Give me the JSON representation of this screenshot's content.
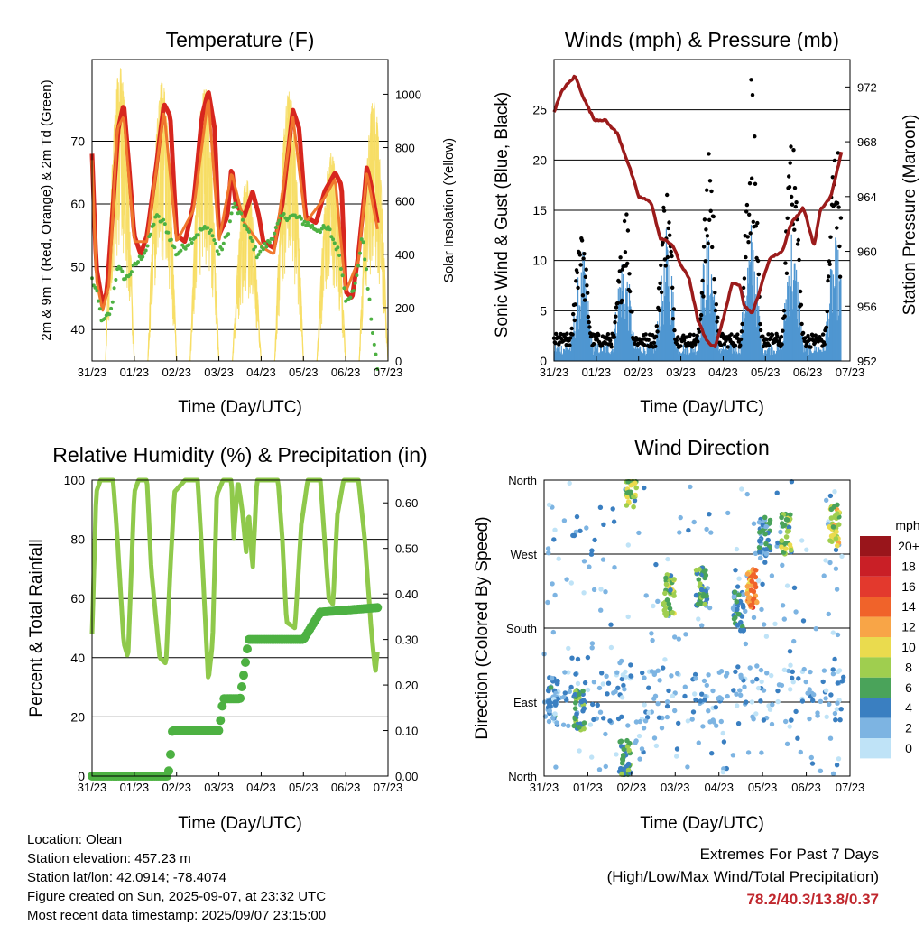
{
  "x_ticks": [
    "31/23",
    "01/23",
    "02/23",
    "03/23",
    "04/23",
    "05/23",
    "06/23",
    "07/23"
  ],
  "panels": {
    "temperature": {
      "title": "Temperature (F)",
      "xlabel": "Time (Day/UTC)",
      "ylabel_left": "2m & 9m T (Red, Orange) & 2m Td (Green)",
      "ylabel_right": "Solar Insolation (Yellow)",
      "left_ticks": [
        "40",
        "50",
        "60",
        "70"
      ],
      "right_ticks": [
        "0",
        "200",
        "400",
        "600",
        "800",
        "1000"
      ]
    },
    "winds": {
      "title": "Winds (mph) & Pressure (mb)",
      "xlabel": "Time (Day/UTC)",
      "ylabel_left": "Sonic Wind & Gust (Blue, Black)",
      "ylabel_right": "Station Pressure (Maroon)",
      "left_ticks": [
        "0",
        "5",
        "10",
        "15",
        "20",
        "25"
      ],
      "right_ticks": [
        "952",
        "956",
        "960",
        "964",
        "968",
        "972"
      ]
    },
    "humidity": {
      "title": "Relative Humidity (%) & Precipitation (in)",
      "xlabel": "Time (Day/UTC)",
      "ylabel_left": "Percent & Total Rainfall",
      "left_ticks": [
        "0",
        "20",
        "40",
        "60",
        "80",
        "100"
      ],
      "right_ticks": [
        "0.00",
        "0.10",
        "0.20",
        "0.30",
        "0.40",
        "0.50",
        "0.60"
      ]
    },
    "direction": {
      "title": "Wind Direction",
      "xlabel": "Time (Day/UTC)",
      "ylabel_left": "Direction (Colored By Speed)",
      "left_ticks": [
        "North",
        "East",
        "South",
        "West",
        "North"
      ],
      "legend_title": "mph",
      "legend_labels": [
        "20+",
        "18",
        "16",
        "14",
        "12",
        "10",
        "8",
        "6",
        "4",
        "2",
        "0"
      ],
      "legend_colors": [
        "#99151b",
        "#c91f26",
        "#e3392d",
        "#f0632a",
        "#f8a547",
        "#eadb4e",
        "#9fce4f",
        "#4aa35a",
        "#3a7fc1",
        "#7db4e2",
        "#bfe3f7"
      ]
    }
  },
  "info": {
    "location": "Location: Olean",
    "elevation": "Station elevation: 457.23 m",
    "latlon": "Station lat/lon: 42.0914; -78.4074",
    "created": "Figure created on Sun, 2025-09-07, at 23:32 UTC",
    "timestamp": "Most recent data timestamp: 2025/09/07 23:15:00"
  },
  "extremes": {
    "title": "Extremes For Past 7 Days",
    "subtitle": "(High/Low/Max Wind/Total Precipitation)",
    "values": "78.2/40.3/13.8/0.37"
  },
  "chart_data": [
    {
      "type": "line",
      "title": "Temperature (F)",
      "x": [
        "31/23",
        "01/23",
        "02/23",
        "03/23",
        "04/23",
        "05/23",
        "06/23",
        "07/23"
      ],
      "series": [
        {
          "color": "#d7261e",
          "axis": "left",
          "points": [
            [
              0,
              68
            ],
            [
              0.1,
              50
            ],
            [
              0.25,
              44
            ],
            [
              0.35,
              46
            ],
            [
              0.5,
              60
            ],
            [
              0.62,
              72
            ],
            [
              0.75,
              76
            ],
            [
              0.85,
              68
            ],
            [
              1.0,
              55
            ],
            [
              1.15,
              52
            ],
            [
              1.3,
              55
            ],
            [
              1.5,
              65
            ],
            [
              1.7,
              76
            ],
            [
              1.85,
              74
            ],
            [
              2.0,
              55
            ],
            [
              2.2,
              54
            ],
            [
              2.4,
              60
            ],
            [
              2.6,
              74
            ],
            [
              2.75,
              78
            ],
            [
              2.9,
              72
            ],
            [
              3.0,
              55
            ],
            [
              3.2,
              58
            ],
            [
              3.3,
              66
            ],
            [
              3.4,
              60
            ],
            [
              3.6,
              58
            ],
            [
              3.8,
              62
            ],
            [
              3.95,
              58
            ],
            [
              4.05,
              54
            ],
            [
              4.3,
              53
            ],
            [
              4.5,
              60
            ],
            [
              4.75,
              75
            ],
            [
              4.9,
              72
            ],
            [
              5.05,
              58
            ],
            [
              5.3,
              57
            ],
            [
              5.5,
              62
            ],
            [
              5.75,
              65
            ],
            [
              5.9,
              63
            ],
            [
              6.0,
              46
            ],
            [
              6.15,
              45
            ],
            [
              6.3,
              52
            ],
            [
              6.45,
              62
            ],
            [
              6.5,
              66
            ],
            [
              6.6,
              63
            ],
            [
              6.65,
              61
            ],
            [
              6.75,
              57
            ]
          ],
          "ylim": [
            35,
            83
          ]
        },
        {
          "color": "#f0772d",
          "axis": "left",
          "points": [
            [
              0,
              67
            ],
            [
              0.1,
              48
            ],
            [
              0.25,
              43
            ],
            [
              0.4,
              47
            ],
            [
              0.6,
              72
            ],
            [
              0.75,
              74
            ],
            [
              1.0,
              54
            ],
            [
              1.3,
              54
            ],
            [
              1.7,
              75
            ],
            [
              2.0,
              54
            ],
            [
              2.4,
              59
            ],
            [
              2.75,
              77
            ],
            [
              3.0,
              54
            ],
            [
              3.3,
              65
            ],
            [
              3.6,
              57
            ],
            [
              4.05,
              53
            ],
            [
              4.3,
              52
            ],
            [
              4.75,
              74
            ],
            [
              5.05,
              57
            ],
            [
              5.5,
              61
            ],
            [
              5.75,
              64
            ],
            [
              6.0,
              46
            ],
            [
              6.3,
              51
            ],
            [
              6.5,
              65
            ],
            [
              6.75,
              56
            ]
          ],
          "ylim": [
            35,
            83
          ]
        },
        {
          "color": "#4db142",
          "axis": "left",
          "points": [
            [
              0,
              48
            ],
            [
              0.1,
              46
            ],
            [
              0.25,
              41
            ],
            [
              0.45,
              43
            ],
            [
              0.6,
              50
            ],
            [
              0.8,
              48
            ],
            [
              1.0,
              50
            ],
            [
              1.3,
              53
            ],
            [
              1.5,
              58
            ],
            [
              1.7,
              57
            ],
            [
              2.0,
              52
            ],
            [
              2.3,
              54
            ],
            [
              2.6,
              56
            ],
            [
              2.8,
              56
            ],
            [
              3.0,
              52
            ],
            [
              3.2,
              55
            ],
            [
              3.35,
              60
            ],
            [
              3.6,
              57
            ],
            [
              3.9,
              52
            ],
            [
              4.2,
              54
            ],
            [
              4.5,
              58
            ],
            [
              4.8,
              58
            ],
            [
              5.05,
              57
            ],
            [
              5.3,
              56
            ],
            [
              5.6,
              56
            ],
            [
              5.85,
              52
            ],
            [
              6.0,
              45
            ],
            [
              6.2,
              46
            ],
            [
              6.4,
              55
            ],
            [
              6.55,
              45
            ],
            [
              6.7,
              36
            ],
            [
              6.75,
              34
            ]
          ],
          "ylim": [
            35,
            83
          ]
        },
        {
          "color": "#f7dd63",
          "axis": "right",
          "peaks_day_fraction": [
            0.65,
            1.65,
            2.65,
            3.65,
            4.65,
            5.65,
            6.65
          ],
          "peak_values": [
            1100,
            1050,
            1030,
            680,
            1010,
            780,
            980
          ],
          "ylim": [
            0,
            1130
          ]
        }
      ]
    },
    {
      "type": "scatter",
      "title": "Winds (mph) & Pressure (mb)",
      "x": [
        "31/23",
        "01/23",
        "02/23",
        "03/23",
        "04/23",
        "05/23",
        "06/23",
        "07/23"
      ],
      "series": [
        {
          "color": "#000000",
          "axis": "left",
          "daily_max_gust": [
            15,
            12,
            17,
            17,
            22,
            28,
            21,
            23
          ],
          "ylim": [
            0,
            30
          ]
        },
        {
          "color": "#4f96d1",
          "axis": "left",
          "daily_max_wind": [
            8,
            10,
            9,
            12,
            11,
            13,
            10,
            11
          ],
          "ylim": [
            0,
            30
          ]
        },
        {
          "color": "#9b1b1b",
          "axis": "right",
          "points": [
            [
              0,
              970.2
            ],
            [
              0.2,
              971.8
            ],
            [
              0.5,
              972.8
            ],
            [
              0.7,
              971.2
            ],
            [
              0.95,
              969.6
            ],
            [
              1.2,
              969.6
            ],
            [
              1.5,
              968.6
            ],
            [
              1.8,
              966
            ],
            [
              2.0,
              964
            ],
            [
              2.3,
              963.6
            ],
            [
              2.5,
              961
            ],
            [
              2.8,
              960.5
            ],
            [
              3.0,
              959
            ],
            [
              3.2,
              958
            ],
            [
              3.4,
              955
            ],
            [
              3.6,
              953.5
            ],
            [
              3.8,
              953
            ],
            [
              4.0,
              955
            ],
            [
              4.2,
              957.6
            ],
            [
              4.4,
              957.6
            ],
            [
              4.5,
              956
            ],
            [
              4.7,
              955.5
            ],
            [
              4.9,
              957.5
            ],
            [
              5.1,
              959.5
            ],
            [
              5.4,
              960
            ],
            [
              5.6,
              962
            ],
            [
              5.9,
              963.2
            ],
            [
              6.15,
              960.4
            ],
            [
              6.3,
              963
            ],
            [
              6.55,
              964
            ],
            [
              6.7,
              966
            ],
            [
              6.8,
              967.2
            ]
          ],
          "ylim": [
            952,
            974
          ]
        }
      ]
    },
    {
      "type": "line",
      "title": "Relative Humidity (%) & Precipitation (in)",
      "x": [
        "31/23",
        "01/23",
        "02/23",
        "03/23",
        "04/23",
        "05/23",
        "06/23",
        "07/23"
      ],
      "series": [
        {
          "color": "#8fc94b",
          "axis": "left",
          "points": [
            [
              0,
              48
            ],
            [
              0.1,
              96
            ],
            [
              0.2,
              100
            ],
            [
              0.5,
              100
            ],
            [
              0.6,
              80
            ],
            [
              0.75,
              45
            ],
            [
              0.85,
              40
            ],
            [
              1.0,
              96
            ],
            [
              1.1,
              100
            ],
            [
              1.3,
              100
            ],
            [
              1.4,
              70
            ],
            [
              1.6,
              40
            ],
            [
              1.75,
              38
            ],
            [
              1.85,
              70
            ],
            [
              1.95,
              96
            ],
            [
              2.2,
              100
            ],
            [
              2.5,
              100
            ],
            [
              2.6,
              75
            ],
            [
              2.75,
              32
            ],
            [
              2.85,
              45
            ],
            [
              2.95,
              95
            ],
            [
              3.1,
              100
            ],
            [
              3.3,
              100
            ],
            [
              3.35,
              80
            ],
            [
              3.45,
              100
            ],
            [
              3.55,
              90
            ],
            [
              3.65,
              75
            ],
            [
              3.7,
              90
            ],
            [
              3.8,
              70
            ],
            [
              3.9,
              100
            ],
            [
              4.0,
              100
            ],
            [
              4.2,
              100
            ],
            [
              4.4,
              100
            ],
            [
              4.5,
              80
            ],
            [
              4.6,
              52
            ],
            [
              4.8,
              50
            ],
            [
              4.95,
              85
            ],
            [
              5.1,
              100
            ],
            [
              5.4,
              100
            ],
            [
              5.5,
              80
            ],
            [
              5.6,
              60
            ],
            [
              5.7,
              58
            ],
            [
              5.8,
              88
            ],
            [
              5.95,
              100
            ],
            [
              6.3,
              100
            ],
            [
              6.45,
              80
            ],
            [
              6.6,
              50
            ],
            [
              6.7,
              35
            ],
            [
              6.75,
              42
            ]
          ],
          "ylim": [
            0,
            100
          ]
        },
        {
          "color": "#4db142",
          "axis": "right",
          "points": [
            [
              0,
              0.0
            ],
            [
              1.8,
              0.0
            ],
            [
              1.85,
              0.04
            ],
            [
              1.9,
              0.1
            ],
            [
              3.0,
              0.1
            ],
            [
              3.05,
              0.13
            ],
            [
              3.1,
              0.17
            ],
            [
              3.5,
              0.17
            ],
            [
              3.6,
              0.23
            ],
            [
              3.7,
              0.3
            ],
            [
              5.0,
              0.3
            ],
            [
              5.2,
              0.33
            ],
            [
              5.4,
              0.36
            ],
            [
              6.75,
              0.37
            ]
          ],
          "ylim": [
            0,
            0.65
          ]
        }
      ]
    },
    {
      "type": "scatter",
      "title": "Wind Direction",
      "x": [
        "31/23",
        "01/23",
        "02/23",
        "03/23",
        "04/23",
        "05/23",
        "06/23",
        "07/23"
      ],
      "y_categories": [
        "North",
        "East",
        "South",
        "West",
        "North"
      ],
      "clusters": [
        {
          "day": 0.2,
          "dir_deg": 95,
          "speed_mph": 3
        },
        {
          "day": 0.8,
          "dir_deg": 80,
          "speed_mph": 6
        },
        {
          "day": 1.85,
          "dir_deg": 20,
          "speed_mph": 6
        },
        {
          "day": 2.0,
          "dir_deg": 350,
          "speed_mph": 8
        },
        {
          "day": 2.85,
          "dir_deg": 220,
          "speed_mph": 7
        },
        {
          "day": 3.6,
          "dir_deg": 230,
          "speed_mph": 6
        },
        {
          "day": 4.45,
          "dir_deg": 200,
          "speed_mph": 4
        },
        {
          "day": 4.75,
          "dir_deg": 230,
          "speed_mph": 13
        },
        {
          "day": 5.05,
          "dir_deg": 290,
          "speed_mph": 4
        },
        {
          "day": 5.55,
          "dir_deg": 295,
          "speed_mph": 7
        },
        {
          "day": 6.65,
          "dir_deg": 305,
          "speed_mph": 9
        }
      ]
    }
  ]
}
